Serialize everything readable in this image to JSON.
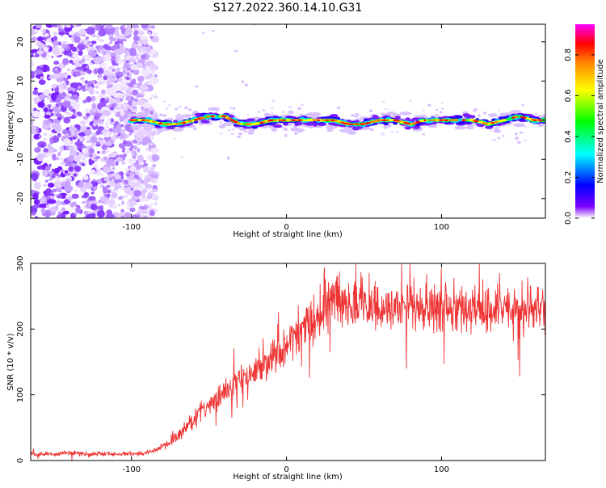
{
  "title": "S127.2022.360.14.10.G31",
  "chart_data": [
    {
      "type": "heatmap",
      "xlabel": "Height of straight line (km)",
      "ylabel": "Frequency (Hz)",
      "xlim": [
        -165,
        167
      ],
      "ylim": [
        -25,
        24.5
      ],
      "xticks": [
        -100,
        0,
        100
      ],
      "yticks": [
        20,
        10,
        0,
        -10,
        -20
      ],
      "grid": false,
      "colorbar": {
        "label": "Normalized spectral amplitude",
        "range": [
          0,
          0.95
        ],
        "ticks": [
          0.0,
          0.2,
          0.4,
          0.6,
          0.8
        ],
        "colors": [
          "#ffffff",
          "#7a00ff",
          "#0000ff",
          "#00ffff",
          "#00ff00",
          "#ffff00",
          "#ff8800",
          "#ff0000",
          "#ff00ff"
        ]
      },
      "noise_region_x": [
        -165,
        -88
      ],
      "signal_band": {
        "x": [
          -100,
          -90,
          -80,
          -70,
          -60,
          -50,
          -40,
          -30,
          -20,
          -10,
          0,
          10,
          20,
          30,
          40,
          50,
          60,
          70,
          80,
          90,
          100,
          110,
          120,
          130,
          140,
          150,
          160,
          167
        ],
        "y": [
          0,
          0,
          -1,
          -1,
          0,
          1,
          1,
          -1,
          -1,
          0,
          0,
          0,
          0,
          0,
          -1,
          -1,
          0,
          0,
          -1,
          0,
          0,
          0,
          0,
          -1,
          0,
          1,
          0,
          0
        ]
      }
    },
    {
      "type": "line",
      "xlabel": "Height of straight line (km)",
      "ylabel": "SNR (10 * v/v)",
      "xlim": [
        -165,
        167
      ],
      "ylim": [
        0,
        300
      ],
      "xticks": [
        -100,
        0,
        100
      ],
      "yticks": [
        0,
        100,
        200,
        300
      ],
      "grid": false,
      "series": [
        {
          "color": "#ee3333",
          "x": [
            -165,
            -150,
            -140,
            -130,
            -110,
            -95,
            -85,
            -75,
            -65,
            -55,
            -45,
            -35,
            -25,
            -15,
            -5,
            5,
            15,
            25,
            35,
            45,
            60,
            80,
            100,
            120,
            140,
            150,
            160,
            167
          ],
          "y": [
            10,
            10,
            12,
            10,
            10,
            10,
            15,
            28,
            50,
            75,
            95,
            115,
            130,
            145,
            165,
            195,
            215,
            245,
            250,
            240,
            230,
            232,
            228,
            230,
            232,
            228,
            230,
            232
          ]
        }
      ]
    }
  ]
}
